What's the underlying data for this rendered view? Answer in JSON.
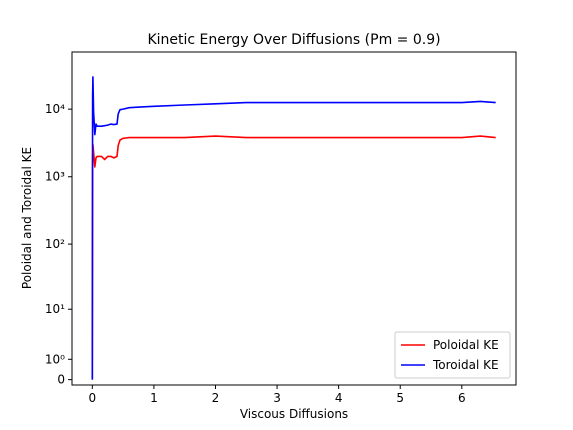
{
  "chart_data": {
    "type": "line",
    "title": "Kinetic Energy Over Diffusions (Pm = 0.9)",
    "xlabel": "Viscous Diffusions",
    "ylabel": "Poloidal and Toroidal KE",
    "xlim": [
      -0.33,
      6.88
    ],
    "ylim": [
      -0.2,
      70000
    ],
    "yscale": "symlog",
    "x_ticks": [
      0,
      1,
      2,
      3,
      4,
      5,
      6
    ],
    "y_ticks": [
      {
        "value": 0,
        "label": "0"
      },
      {
        "value": 1,
        "label": "10⁰"
      },
      {
        "value": 10,
        "label": "10¹"
      },
      {
        "value": 100,
        "label": "10²"
      },
      {
        "value": 1000,
        "label": "10³"
      },
      {
        "value": 10000,
        "label": "10⁴"
      }
    ],
    "legend_position": "lower-right",
    "series": [
      {
        "name": "Poloidal KE",
        "color": "#ff0000",
        "x": [
          0,
          0.005,
          0.01,
          0.02,
          0.04,
          0.06,
          0.08,
          0.1,
          0.15,
          0.2,
          0.25,
          0.3,
          0.35,
          0.4,
          0.42,
          0.45,
          0.5,
          0.6,
          0.8,
          1.0,
          1.5,
          2.0,
          2.5,
          3.0,
          3.5,
          4.0,
          4.5,
          5.0,
          5.5,
          6.0,
          6.3,
          6.55
        ],
        "values": [
          0,
          1800,
          3000,
          2300,
          1400,
          1900,
          2000,
          2000,
          2000,
          1800,
          2000,
          2000,
          1900,
          2000,
          2900,
          3500,
          3700,
          3800,
          3800,
          3800,
          3800,
          4000,
          3800,
          3800,
          3800,
          3800,
          3800,
          3800,
          3800,
          3800,
          4000,
          3800
        ]
      },
      {
        "name": "Toroidal KE",
        "color": "#0000ff",
        "x": [
          0,
          0.005,
          0.01,
          0.02,
          0.04,
          0.06,
          0.08,
          0.1,
          0.15,
          0.2,
          0.25,
          0.3,
          0.35,
          0.4,
          0.42,
          0.45,
          0.5,
          0.6,
          0.8,
          1.0,
          1.5,
          2.0,
          2.5,
          3.0,
          3.5,
          4.0,
          4.5,
          5.0,
          5.5,
          6.0,
          6.3,
          6.55
        ],
        "values": [
          0,
          15000,
          30000,
          9000,
          4200,
          6000,
          5600,
          5600,
          5600,
          5700,
          5800,
          6000,
          5900,
          6000,
          8500,
          9800,
          10000,
          10500,
          10800,
          11000,
          11500,
          12000,
          12500,
          12500,
          12500,
          12500,
          12500,
          12500,
          12500,
          12500,
          13000,
          12500
        ]
      }
    ]
  }
}
